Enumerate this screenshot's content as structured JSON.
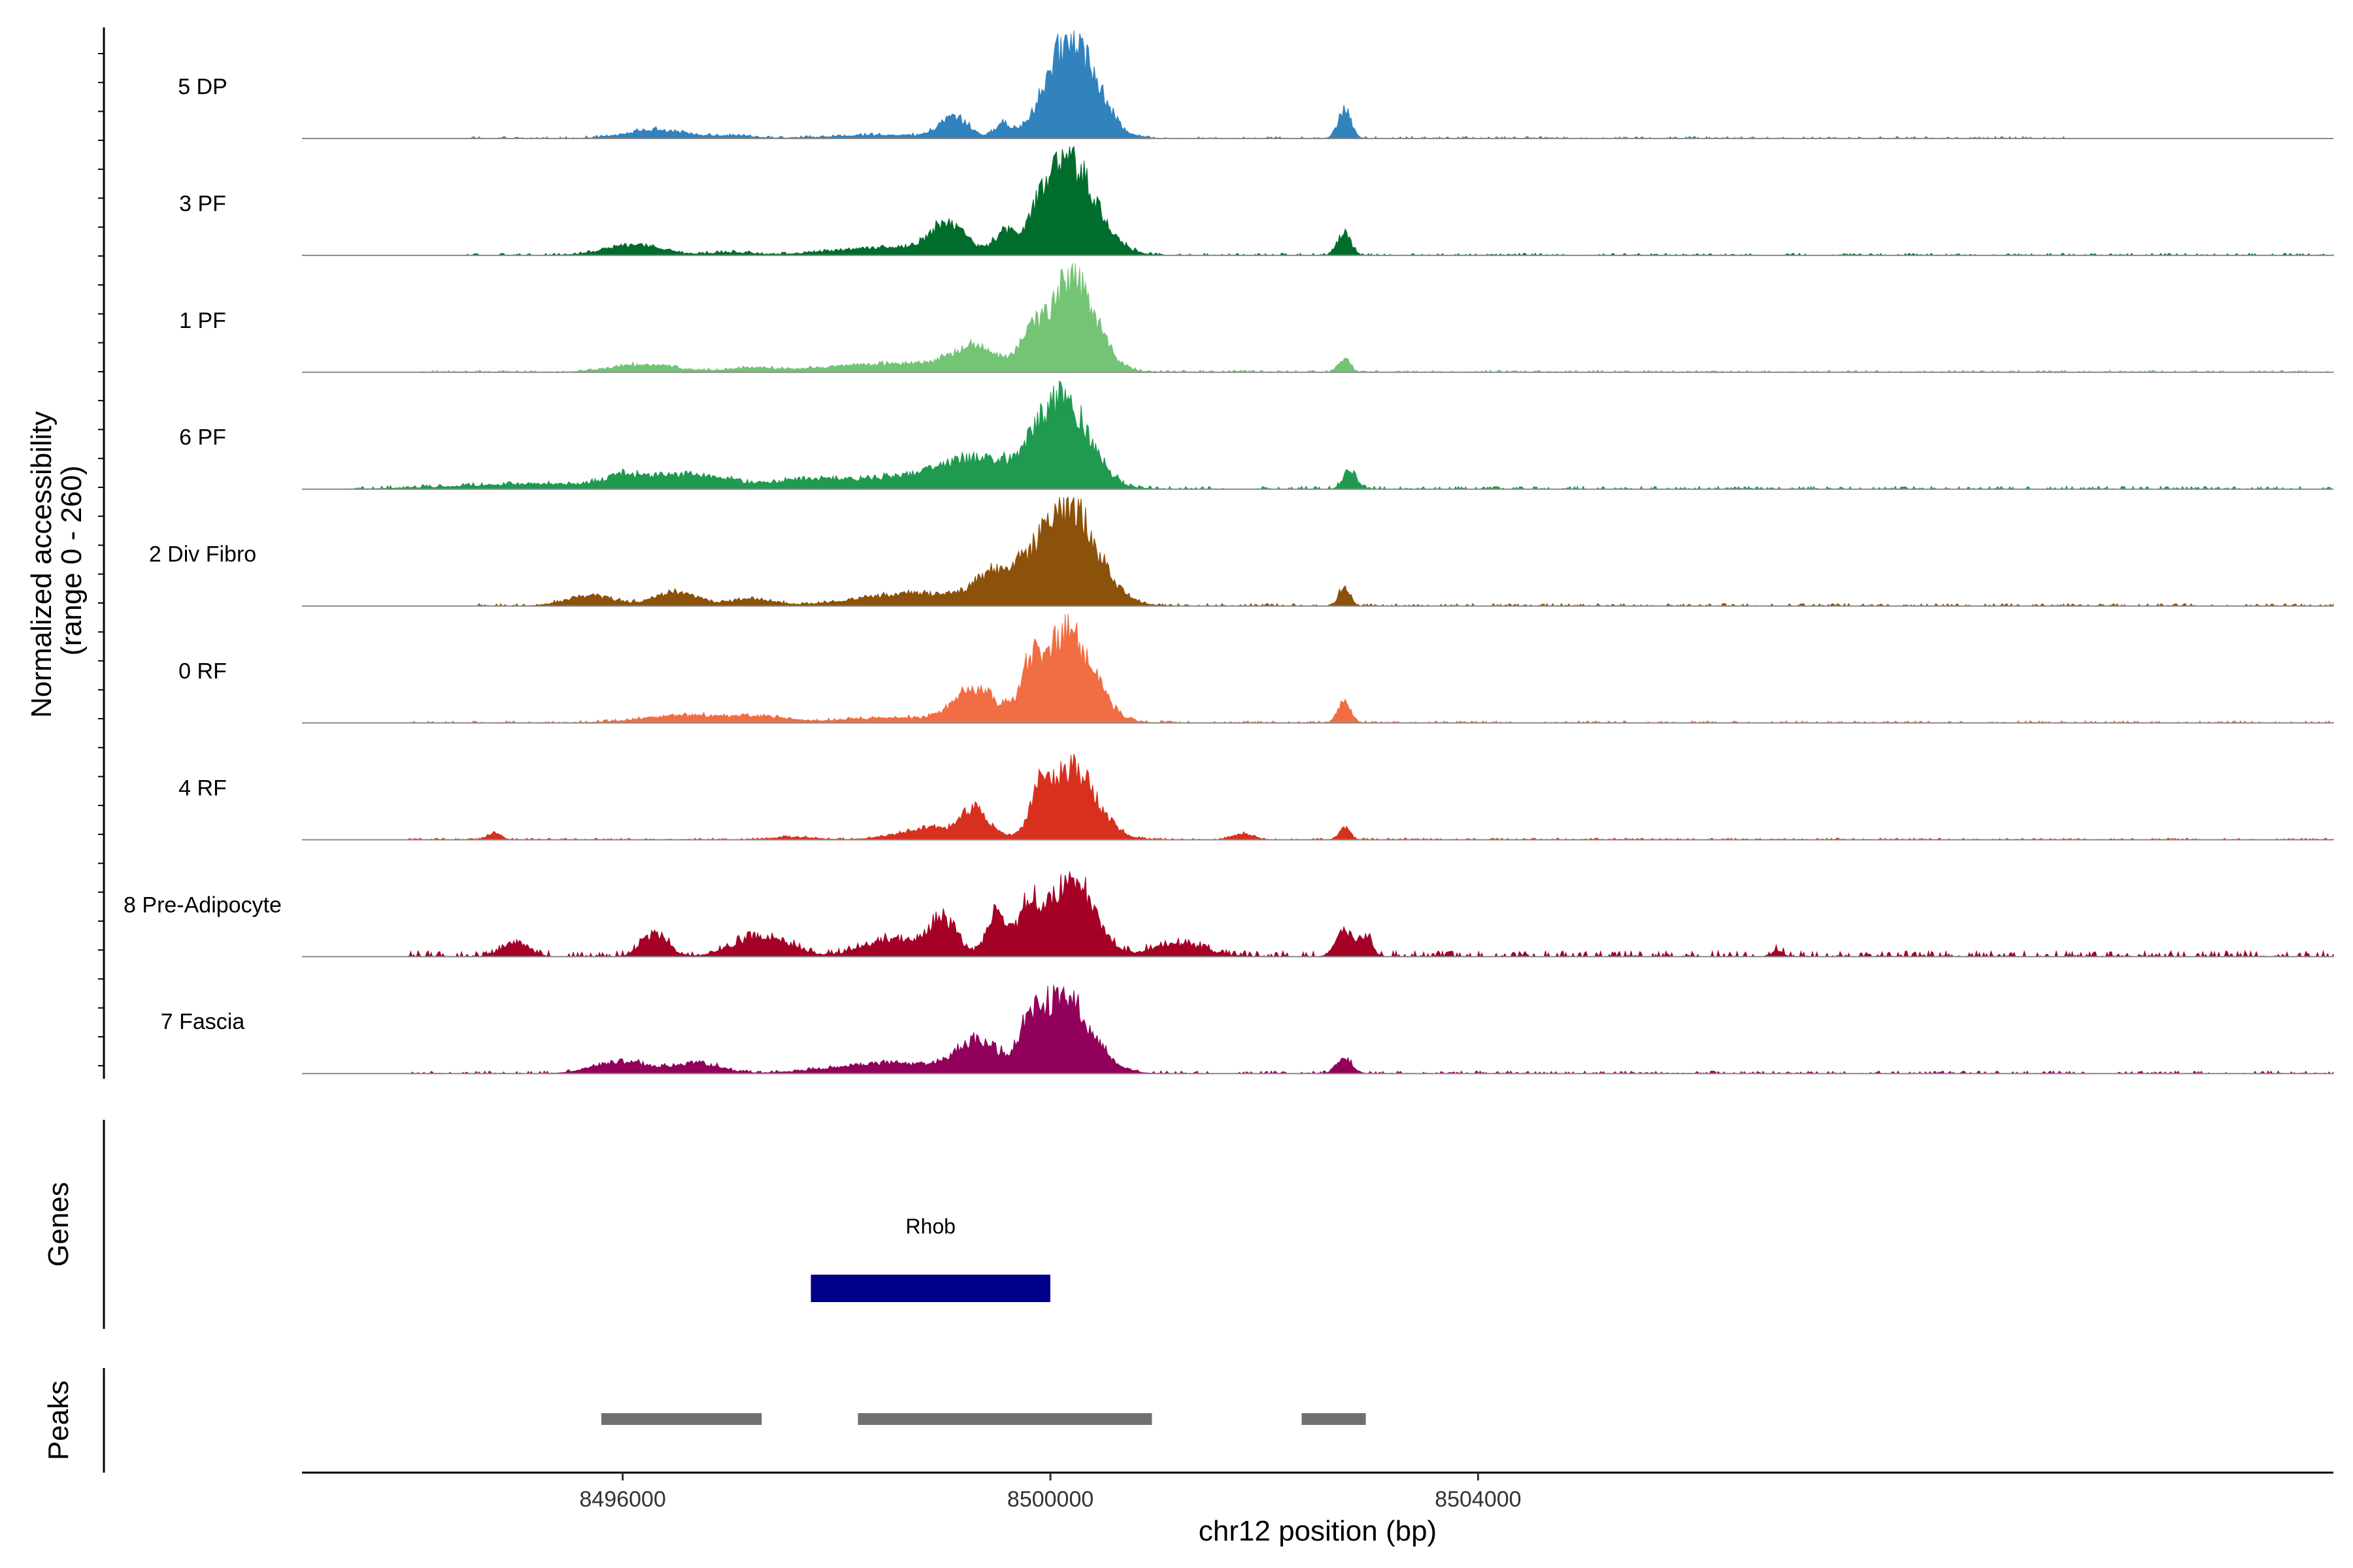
{
  "chart_data": {
    "type": "area",
    "region": {
      "chromosome": "chr12",
      "start": 8493000,
      "end": 8512000
    },
    "y_axis": {
      "title_line1": "Normalized accessibility",
      "title_line2": "(range 0 - 260)",
      "ylim": [
        0,
        260
      ]
    },
    "x_axis": {
      "title": "chr12 position (bp)",
      "ticks": [
        8496000,
        8500000,
        8504000
      ],
      "tick_labels": [
        "8496000",
        "8500000",
        "8504000"
      ]
    },
    "tracks": [
      {
        "label": "5 DP",
        "color": "#3182BD",
        "peaks": [
          [
            8496300,
            280,
            20
          ],
          [
            8497000,
            200,
            6
          ],
          [
            8498500,
            500,
            8
          ],
          [
            8499100,
            130,
            50
          ],
          [
            8499550,
            70,
            32
          ],
          [
            8500200,
            230,
            240
          ],
          [
            8502750,
            60,
            70
          ]
        ],
        "noise": 5,
        "span": [
          8494500,
          8509500
        ]
      },
      {
        "label": "3 PF",
        "color": "#006D2C",
        "peaks": [
          [
            8496100,
            260,
            25
          ],
          [
            8497000,
            200,
            7
          ],
          [
            8498500,
            500,
            20
          ],
          [
            8499050,
            160,
            70
          ],
          [
            8499550,
            80,
            40
          ],
          [
            8500150,
            260,
            230
          ],
          [
            8502750,
            60,
            55
          ]
        ],
        "noise": 5,
        "span": [
          8494500,
          8512000
        ]
      },
      {
        "label": "1 PF",
        "color": "#74C476",
        "peaks": [
          [
            8496200,
            300,
            18
          ],
          [
            8497200,
            200,
            10
          ],
          [
            8498500,
            600,
            20
          ],
          [
            8499300,
            220,
            55
          ],
          [
            8499800,
            90,
            60
          ],
          [
            8500200,
            220,
            230
          ],
          [
            8502750,
            50,
            35
          ]
        ],
        "noise": 5,
        "span": [
          8494000,
          8512000
        ]
      },
      {
        "label": "6 PF",
        "color": "#1F9A50",
        "peaks": [
          [
            8495200,
            700,
            12
          ],
          [
            8496600,
            400,
            35
          ],
          [
            8497700,
            300,
            15
          ],
          [
            8498700,
            600,
            30
          ],
          [
            8499300,
            300,
            55
          ],
          [
            8500100,
            250,
            220
          ],
          [
            8502800,
            60,
            45
          ],
          [
            8496000,
            150,
            20
          ]
        ],
        "noise": 7,
        "span": [
          8493500,
          8512000
        ]
      },
      {
        "label": "2 Div Fibro",
        "color": "#8C510A",
        "peaks": [
          [
            8495700,
            220,
            25
          ],
          [
            8496500,
            200,
            35
          ],
          [
            8497200,
            180,
            18
          ],
          [
            8498700,
            500,
            30
          ],
          [
            8499500,
            200,
            70
          ],
          [
            8500150,
            270,
            245
          ],
          [
            8502750,
            50,
            50
          ]
        ],
        "noise": 6,
        "span": [
          8494500,
          8512000
        ]
      },
      {
        "label": "0 RF",
        "color": "#F16D43",
        "peaks": [
          [
            8496600,
            400,
            18
          ],
          [
            8497300,
            250,
            12
          ],
          [
            8498500,
            450,
            12
          ],
          [
            8499300,
            200,
            80
          ],
          [
            8499800,
            80,
            75
          ],
          [
            8500150,
            240,
            220
          ],
          [
            8502750,
            60,
            50
          ]
        ],
        "noise": 5,
        "span": [
          8494000,
          8512000
        ]
      },
      {
        "label": "4 RF",
        "color": "#D7301F",
        "peaks": [
          [
            8494800,
            60,
            18
          ],
          [
            8497600,
            200,
            6
          ],
          [
            8498900,
            300,
            28
          ],
          [
            8499300,
            120,
            70
          ],
          [
            8499900,
            80,
            70
          ],
          [
            8500200,
            230,
            170
          ],
          [
            8501800,
            100,
            14
          ],
          [
            8502750,
            50,
            30
          ]
        ],
        "noise": 4,
        "span": [
          8494000,
          8512000
        ]
      },
      {
        "label": "8 Pre-Adipocyte",
        "color": "#A50026",
        "peaks": [
          [
            8495000,
            120,
            35
          ],
          [
            8496300,
            120,
            55
          ],
          [
            8497300,
            250,
            50
          ],
          [
            8498500,
            260,
            40
          ],
          [
            8499000,
            130,
            90
          ],
          [
            8499500,
            90,
            105
          ],
          [
            8499800,
            100,
            120
          ],
          [
            8500200,
            200,
            200
          ],
          [
            8501200,
            250,
            30
          ],
          [
            8502750,
            80,
            60
          ],
          [
            8502950,
            60,
            45
          ],
          [
            8506800,
            50,
            15
          ]
        ],
        "noise": 14,
        "span": [
          8494000,
          8512000
        ]
      },
      {
        "label": "7 Fascia",
        "color": "#91005A",
        "peaks": [
          [
            8496000,
            250,
            30
          ],
          [
            8496700,
            200,
            25
          ],
          [
            8498500,
            500,
            25
          ],
          [
            8499300,
            180,
            75
          ],
          [
            8499800,
            80,
            55
          ],
          [
            8500100,
            260,
            190
          ],
          [
            8502750,
            70,
            40
          ]
        ],
        "noise": 6,
        "span": [
          8494000,
          8512000
        ]
      }
    ],
    "genes_track": {
      "label": "Genes",
      "genes": [
        {
          "name": "Rhob",
          "start": 8497760,
          "end": 8500000,
          "color": "#00008B"
        }
      ]
    },
    "peaks_track": {
      "label": "Peaks",
      "color": "#707070",
      "peaks": [
        {
          "start": 8495800,
          "end": 8497300
        },
        {
          "start": 8498200,
          "end": 8500950
        },
        {
          "start": 8502350,
          "end": 8502950
        }
      ]
    }
  }
}
